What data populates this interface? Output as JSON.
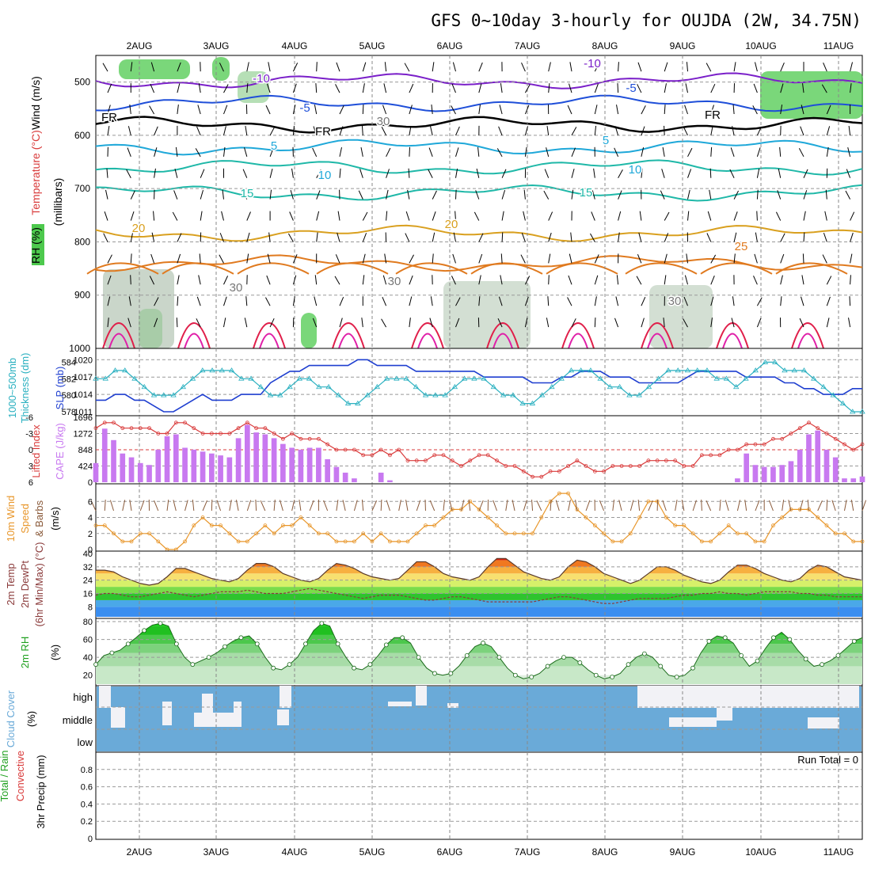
{
  "title": "GFS 0~10day 3-hourly for OUJDA (2W, 34.75N)",
  "colors": {
    "rh_green": "#4dc94d",
    "rh_light": "#e6f3e6",
    "temp_purple": "#7a1fc9",
    "temp_blue": "#1f4fd9",
    "temp_cyan": "#1fa8d9",
    "temp_teal": "#1fb8a8",
    "temp_gold": "#d9a01f",
    "temp_orange": "#e07a1f",
    "temp_red": "#e01f4a",
    "slp": "#1f3fd0",
    "thickness": "#2ab0c0",
    "lifted": "#d93a3a",
    "cape": "#c879f0",
    "wind10": "#e8962a",
    "cloud": "#6aaad8",
    "rh2m": "#1ec81e"
  },
  "chart_data": [
    {
      "panel": "upper-air",
      "type": "heatmap",
      "title": "GFS 0~10day 3-hourly for OUJDA (2W, 34.75N)",
      "x_ticks": [
        "2AUG",
        "3AUG",
        "4AUG",
        "5AUG",
        "6AUG",
        "7AUG",
        "8AUG",
        "9AUG",
        "10AUG",
        "11AUG"
      ],
      "ylabel_lines": [
        "Wind (m/s)",
        "Temperature (°C)",
        "RH (%)",
        "(millibars)"
      ],
      "y_ticks": [
        "500",
        "600",
        "700",
        "800",
        "900",
        "1000"
      ],
      "ylim": [
        1000,
        450
      ],
      "isotherms": [
        {
          "label": "-10",
          "color": "temp_purple",
          "level": 498
        },
        {
          "label": "-5",
          "color": "temp_blue",
          "level": 540
        },
        {
          "label": "FR",
          "color": "#000000",
          "level": 580
        },
        {
          "label": "5",
          "color": "temp_cyan",
          "level": 622
        },
        {
          "label": "10",
          "color": "temp_teal",
          "level": 660
        },
        {
          "label": "15",
          "color": "temp_teal",
          "level": 708
        },
        {
          "label": "20",
          "color": "temp_gold",
          "level": 784
        },
        {
          "label": "25",
          "color": "temp_orange",
          "level": 840
        }
      ],
      "contour_labels": [
        "-10",
        "-5",
        "FR",
        "FR",
        "5",
        "5",
        "10",
        "10",
        "15",
        "15",
        "20",
        "20",
        "25",
        "30",
        "30",
        "30",
        "30",
        "-10",
        "-5",
        "FR"
      ]
    },
    {
      "panel": "slp-thickness",
      "type": "line",
      "ylabel_left": [
        "1000~500mb",
        "Thickness (dm)"
      ],
      "ylabel_right": "SLP (mb)",
      "y_ticks_left": [
        "584",
        "582",
        "580",
        "578"
      ],
      "y_ticks_right": [
        "1020",
        "1017",
        "1014",
        "1011"
      ],
      "ylim_slp": [
        1011,
        1021
      ],
      "ylim_thickness": [
        578,
        585
      ],
      "series": [
        {
          "name": "SLP",
          "values": [
            1013,
            1013,
            1014,
            1014,
            1013,
            1013,
            1012,
            1011,
            1011,
            1012,
            1013,
            1014,
            1013,
            1013,
            1013,
            1014,
            1014,
            1014,
            1016,
            1017,
            1018,
            1018,
            1019,
            1019,
            1019,
            1019,
            1019,
            1020,
            1020,
            1019,
            1019,
            1019,
            1019,
            1018,
            1018,
            1018,
            1018,
            1018,
            1018,
            1018,
            1017,
            1017,
            1017,
            1017,
            1017,
            1016,
            1016,
            1016,
            1017,
            1017,
            1018,
            1018,
            1018,
            1017,
            1017,
            1017,
            1016,
            1016,
            1016,
            1016,
            1016,
            1017,
            1018,
            1018,
            1018,
            1018,
            1018,
            1017,
            1017,
            1017,
            1017,
            1016,
            1016,
            1015,
            1015,
            1014,
            1014,
            1014,
            1015,
            1015
          ]
        },
        {
          "name": "Thickness",
          "values": [
            582,
            582,
            583,
            583,
            582,
            581,
            580,
            580,
            580,
            581,
            582,
            583,
            583,
            583,
            583,
            582,
            582,
            581,
            580,
            580,
            581,
            582,
            582,
            581,
            581,
            580,
            579,
            579,
            580,
            581,
            582,
            582,
            582,
            581,
            580,
            580,
            580,
            581,
            582,
            582,
            582,
            581,
            580,
            580,
            579,
            579,
            580,
            581,
            582,
            583,
            583,
            583,
            582,
            581,
            581,
            580,
            580,
            581,
            582,
            583,
            583,
            583,
            583,
            583,
            582,
            582,
            581,
            582,
            583,
            584,
            584,
            583,
            583,
            583,
            582,
            581,
            580,
            579,
            578,
            578
          ]
        }
      ]
    },
    {
      "panel": "cape-lifted",
      "type": "bar",
      "ylabel_left": "Lifted Index",
      "ylabel_right": "CAPE (J/kg)",
      "y_ticks_left": [
        "-6",
        "-3",
        "0",
        "3",
        "6"
      ],
      "y_ticks_right": [
        "1696",
        "1272",
        "848",
        "424",
        "0"
      ],
      "ylim_cape": [
        0,
        1696
      ],
      "ylim_li": [
        6,
        -6
      ],
      "series": [
        {
          "name": "CAPE",
          "values": [
            500,
            1400,
            1100,
            750,
            650,
            500,
            450,
            850,
            1200,
            1250,
            900,
            850,
            800,
            750,
            700,
            650,
            1150,
            1500,
            1300,
            1250,
            1150,
            1000,
            900,
            850,
            900,
            900,
            600,
            400,
            250,
            100,
            0,
            0,
            250,
            50,
            0,
            0,
            0,
            0,
            0,
            0,
            0,
            0,
            0,
            0,
            0,
            0,
            0,
            0,
            0,
            0,
            0,
            0,
            0,
            0,
            0,
            0,
            0,
            0,
            0,
            0,
            0,
            0,
            0,
            0,
            0,
            0,
            0,
            0,
            0,
            0,
            0,
            0,
            100,
            750,
            450,
            400,
            400,
            450,
            550,
            850,
            1250,
            1350,
            850,
            650,
            100,
            100,
            150
          ]
        },
        {
          "name": "Lifted Index",
          "values": [
            -4,
            -5,
            -5,
            -4,
            -4,
            -4,
            -4,
            -3,
            -3,
            -5,
            -5,
            -4,
            -3,
            -3,
            -3,
            -3,
            -4,
            -5,
            -4,
            -4,
            -3,
            -2,
            -3,
            -2,
            -2,
            -2,
            -1,
            0,
            0,
            0,
            1,
            1,
            0,
            1,
            0,
            2,
            2,
            2,
            1,
            1,
            2,
            3,
            2,
            1,
            1,
            2,
            3,
            3,
            4,
            5,
            5,
            4,
            4,
            3,
            2,
            3,
            4,
            4,
            3,
            3,
            3,
            3,
            2,
            2,
            2,
            2,
            3,
            3,
            1,
            1,
            1,
            0,
            0,
            -1,
            -1,
            -1,
            -2,
            -2,
            -3,
            -4,
            -5,
            -4,
            -3,
            -2,
            -1,
            0,
            -1
          ]
        }
      ]
    },
    {
      "panel": "wind10m",
      "type": "line",
      "ylabel_lines": [
        "10m Wind",
        "Speed",
        "& Barbs",
        "(m/s)"
      ],
      "y_ticks": [
        "0",
        "2",
        "4",
        "6"
      ],
      "ylim": [
        0,
        8
      ],
      "series": [
        {
          "name": "Wind Speed",
          "values": [
            3,
            3,
            2,
            1,
            1,
            2,
            2,
            1,
            0,
            0,
            1,
            3,
            4,
            3,
            3,
            2,
            1,
            1,
            2,
            3,
            2,
            3,
            3,
            4,
            3,
            2,
            2,
            1,
            1,
            1,
            2,
            1,
            2,
            1,
            1,
            1,
            2,
            3,
            3,
            4,
            5,
            5,
            6,
            5,
            4,
            3,
            2,
            2,
            2,
            2,
            4,
            6,
            7,
            7,
            5,
            4,
            3,
            2,
            1,
            1,
            2,
            4,
            6,
            6,
            4,
            3,
            3,
            2,
            1,
            1,
            2,
            3,
            2,
            2,
            1,
            1,
            3,
            4,
            5,
            5,
            5,
            4,
            3,
            2,
            2,
            1,
            1
          ]
        }
      ]
    },
    {
      "panel": "temp2m",
      "type": "area",
      "ylabel_lines": [
        "2m Temp",
        "2m DewPt",
        "(6hr Min/Max) (°C)"
      ],
      "y_ticks": [
        "8",
        "16",
        "24",
        "32",
        "40"
      ],
      "ylim": [
        2,
        40
      ],
      "series": [
        {
          "name": "2m Temp",
          "values": [
            30,
            30,
            29,
            26,
            24,
            22,
            21,
            22,
            26,
            31,
            31,
            29,
            27,
            25,
            24,
            23,
            25,
            30,
            34,
            34,
            32,
            28,
            26,
            24,
            23,
            25,
            30,
            34,
            33,
            31,
            28,
            26,
            25,
            24,
            25,
            30,
            35,
            35,
            32,
            28,
            26,
            25,
            24,
            26,
            32,
            37,
            37,
            33,
            29,
            27,
            25,
            24,
            26,
            32,
            36,
            35,
            32,
            28,
            26,
            24,
            22,
            24,
            28,
            32,
            32,
            30,
            27,
            25,
            23,
            22,
            24,
            29,
            33,
            33,
            31,
            28,
            26,
            24,
            23,
            25,
            30,
            33,
            32,
            29,
            26,
            25,
            24
          ]
        },
        {
          "name": "2m DewPt",
          "values": [
            15,
            16,
            16,
            15,
            14,
            14,
            15,
            16,
            17,
            16,
            15,
            14,
            15,
            16,
            17,
            17,
            17,
            18,
            17,
            16,
            16,
            16,
            17,
            18,
            19,
            18,
            17,
            16,
            15,
            14,
            13,
            14,
            15,
            15,
            15,
            14,
            13,
            12,
            12,
            13,
            14,
            14,
            13,
            12,
            11,
            11,
            11,
            11,
            11,
            11,
            12,
            13,
            14,
            14,
            13,
            12,
            11,
            10,
            10,
            11,
            12,
            13,
            13,
            13,
            13,
            14,
            15,
            15,
            16,
            16,
            17,
            16,
            16,
            15,
            16,
            17,
            17,
            17,
            17,
            16,
            16,
            15,
            15,
            14,
            14,
            14,
            14
          ]
        }
      ]
    },
    {
      "panel": "rh2m",
      "type": "area",
      "ylabel_lines": [
        "2m RH",
        "(%)"
      ],
      "y_ticks": [
        "20",
        "40",
        "60",
        "80"
      ],
      "ylim": [
        10,
        80
      ],
      "series": [
        {
          "name": "2m RH",
          "values": [
            32,
            42,
            45,
            48,
            55,
            62,
            70,
            76,
            78,
            75,
            55,
            40,
            32,
            36,
            40,
            45,
            52,
            58,
            62,
            64,
            55,
            40,
            28,
            26,
            32,
            40,
            55,
            70,
            78,
            75,
            55,
            40,
            28,
            26,
            32,
            42,
            54,
            62,
            62,
            56,
            40,
            28,
            22,
            20,
            22,
            30,
            42,
            52,
            56,
            52,
            40,
            28,
            20,
            16,
            18,
            22,
            30,
            36,
            40,
            40,
            34,
            26,
            20,
            16,
            18,
            22,
            32,
            40,
            44,
            40,
            30,
            20,
            18,
            20,
            28,
            45,
            58,
            64,
            62,
            56,
            42,
            30,
            36,
            50,
            62,
            68,
            60,
            48,
            38,
            30,
            32,
            36,
            42,
            50,
            58,
            62
          ]
        }
      ]
    },
    {
      "panel": "cloud-cover",
      "type": "heatmap",
      "ylabel_lines": [
        "Cloud Cover",
        "(%)"
      ],
      "y_ticks": [
        "high",
        "middle",
        "low"
      ]
    },
    {
      "panel": "precip",
      "type": "bar",
      "ylabel_lines": [
        "Total / Rain",
        "Convective",
        "3hr Precip (mm)"
      ],
      "y_ticks": [
        "0",
        "0.2",
        "0.4",
        "0.6",
        "0.8"
      ],
      "ylim": [
        0,
        1.0
      ],
      "run_total": "Run Total = 0",
      "series": [
        {
          "name": "Total",
          "values": []
        },
        {
          "name": "Convective",
          "values": []
        }
      ]
    }
  ]
}
